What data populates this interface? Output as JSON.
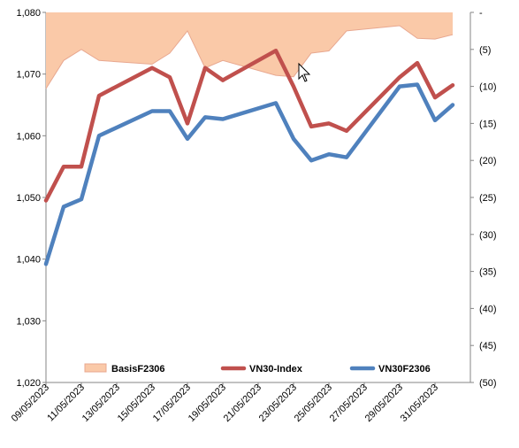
{
  "chart_data": {
    "type": "line",
    "x": [
      "09/05/2023",
      "10/05/2023",
      "11/05/2023",
      "12/05/2023",
      "15/05/2023",
      "16/05/2023",
      "17/05/2023",
      "18/05/2023",
      "19/05/2023",
      "22/05/2023",
      "23/05/2023",
      "24/05/2023",
      "25/05/2023",
      "26/05/2023",
      "29/05/2023",
      "30/05/2023",
      "31/05/2023",
      "01/06/2023"
    ],
    "x_axis": {
      "ticks": [
        "09/05/2023",
        "11/05/2023",
        "13/05/2023",
        "15/05/2023",
        "17/05/2023",
        "19/05/2023",
        "21/05/2023",
        "23/05/2023",
        "25/05/2023",
        "27/05/2023",
        "29/05/2023",
        "31/05/2023"
      ],
      "range": [
        "09/05/2023",
        "02/06/2023"
      ]
    },
    "y_left": {
      "min": 1020,
      "max": 1080,
      "ticks": [
        "1,020",
        "1,030",
        "1,040",
        "1,050",
        "1,060",
        "1,070",
        "1,080"
      ]
    },
    "y_right": {
      "min": -50,
      "max": 0,
      "reversed": true,
      "ticks": [
        "-",
        "(5)",
        "(10)",
        "(15)",
        "(20)",
        "(25)",
        "(30)",
        "(35)",
        "(40)",
        "(45)",
        "(50)"
      ]
    },
    "series": [
      {
        "name": "BasisF2306",
        "kind": "area",
        "axis": "right",
        "color": "#FAC9A8",
        "edge_color": "#E8A890",
        "x": [
          "09/05/2023",
          "10/05/2023",
          "11/05/2023",
          "12/05/2023",
          "15/05/2023",
          "16/05/2023",
          "17/05/2023",
          "18/05/2023",
          "19/05/2023",
          "22/05/2023",
          "23/05/2023",
          "24/05/2023",
          "25/05/2023",
          "26/05/2023",
          "29/05/2023",
          "30/05/2023",
          "31/05/2023",
          "01/06/2023"
        ],
        "values": [
          -10.3,
          -6.5,
          -5.0,
          -6.5,
          -7.0,
          -5.5,
          -2.5,
          -7.5,
          -6.5,
          -8.5,
          -8.7,
          -5.5,
          -5.2,
          -2.5,
          -1.8,
          -3.5,
          -3.6,
          -3.0
        ]
      },
      {
        "name": "VN30-Index",
        "kind": "line",
        "axis": "left",
        "color": "#C0504D",
        "x": [
          "09/05/2023",
          "10/05/2023",
          "11/05/2023",
          "12/05/2023",
          "15/05/2023",
          "16/05/2023",
          "17/05/2023",
          "18/05/2023",
          "19/05/2023",
          "22/05/2023",
          "23/05/2023",
          "24/05/2023",
          "25/05/2023",
          "26/05/2023",
          "29/05/2023",
          "30/05/2023",
          "31/05/2023",
          "01/06/2023"
        ],
        "values": [
          1049.5,
          1055.0,
          1055.0,
          1066.5,
          1071.0,
          1069.5,
          1062.0,
          1071.0,
          1069.0,
          1073.8,
          1068.0,
          1061.5,
          1062.0,
          1060.8,
          1069.5,
          1071.8,
          1066.2,
          1068.2
        ]
      },
      {
        "name": "VN30F2306",
        "kind": "line",
        "axis": "left",
        "color": "#4F81BD",
        "x": [
          "09/05/2023",
          "10/05/2023",
          "11/05/2023",
          "12/05/2023",
          "15/05/2023",
          "16/05/2023",
          "17/05/2023",
          "18/05/2023",
          "19/05/2023",
          "22/05/2023",
          "23/05/2023",
          "24/05/2023",
          "25/05/2023",
          "26/05/2023",
          "29/05/2023",
          "30/05/2023",
          "31/05/2023",
          "01/06/2023"
        ],
        "values": [
          1039.2,
          1048.5,
          1049.7,
          1060.0,
          1064.0,
          1064.0,
          1059.5,
          1063.0,
          1062.7,
          1065.3,
          1059.5,
          1056.0,
          1057.0,
          1056.5,
          1068.0,
          1068.3,
          1062.5,
          1065.0
        ]
      }
    ],
    "legend": {
      "placement": "bottom-inside",
      "entries": [
        "BasisF2306",
        "VN30-Index",
        "VN30F2306"
      ]
    },
    "grid": false
  }
}
